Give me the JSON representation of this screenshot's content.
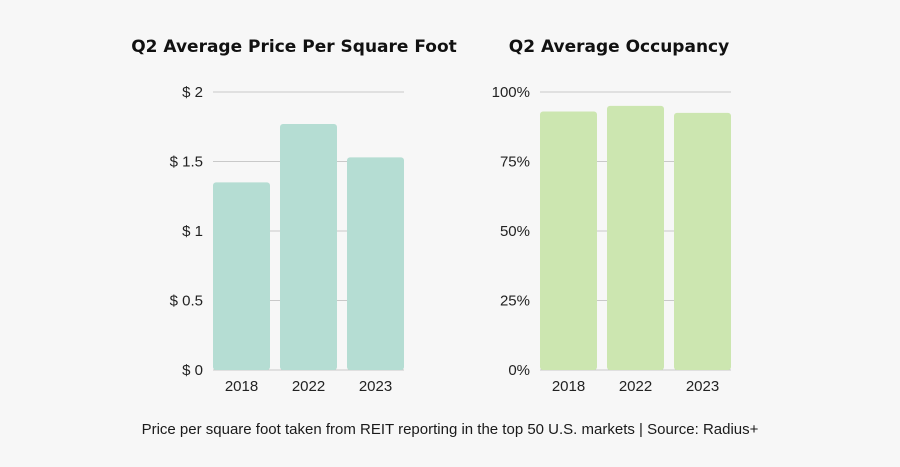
{
  "chart_data": [
    {
      "type": "bar",
      "title": "Q2 Average Price Per Square Foot",
      "categories": [
        "2018",
        "2022",
        "2023"
      ],
      "values": [
        1.35,
        1.77,
        1.53
      ],
      "ylim": [
        0,
        2
      ],
      "yticks": [
        0,
        0.5,
        1,
        1.5,
        2
      ],
      "ytick_labels": [
        "$ 0",
        "$ 0.5",
        "$ 1",
        "$ 1.5",
        "$ 2"
      ],
      "xlabel": "",
      "ylabel": "",
      "grid": true,
      "color": "#b5ddd3"
    },
    {
      "type": "bar",
      "title": "Q2 Average Occupancy",
      "categories": [
        "2018",
        "2022",
        "2023"
      ],
      "values": [
        93,
        95,
        92.5
      ],
      "ylim": [
        0,
        100
      ],
      "yticks": [
        0,
        25,
        50,
        75,
        100
      ],
      "ytick_labels": [
        "0%",
        "25%",
        "50%",
        "75%",
        "100%"
      ],
      "xlabel": "",
      "ylabel": "",
      "grid": true,
      "color": "#cce6b0"
    }
  ],
  "caption": "Price per square foot taken from REIT reporting in the top 50 U.S. markets | Source: Radius+"
}
